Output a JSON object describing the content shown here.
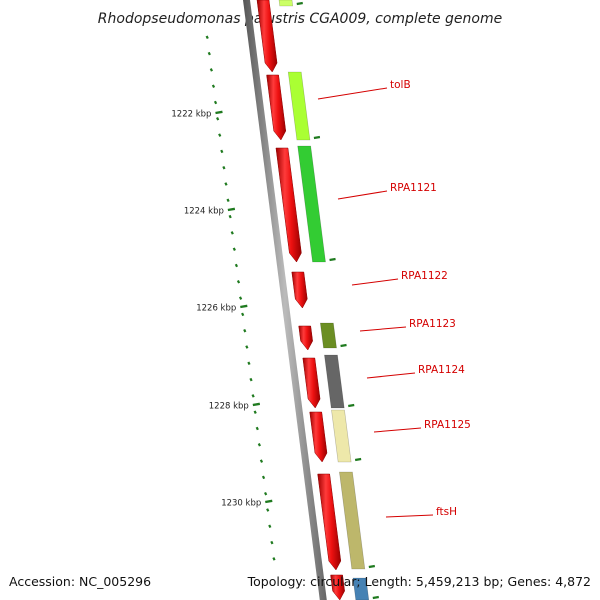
{
  "title": "Rhodopseudomonas palustris CGA009, complete genome",
  "footer": {
    "accession": "Accession: NC_005296",
    "summary": "Topology: circular; Length: 5,459,213 bp; Genes: 4,872"
  },
  "scale": {
    "tick_color": "#1f7a1f",
    "labels": [
      "1222 kbp",
      "1224 kbp",
      "1226 kbp",
      "1228 kbp",
      "1230 kbp"
    ]
  },
  "colors": {
    "cds_strand": "#ee1111",
    "backbone": "#888888",
    "label": "#d40000"
  },
  "genes": [
    {
      "name": "",
      "color": "#ccff66"
    },
    {
      "name": "tolB",
      "color": "#aaff33"
    },
    {
      "name": "RPA1121",
      "color": "#33cc33"
    },
    {
      "name": "RPA1122",
      "color": ""
    },
    {
      "name": "RPA1123",
      "color": "#6b8e23"
    },
    {
      "name": "RPA1124",
      "color": "#666666"
    },
    {
      "name": "RPA1125",
      "color": "#eee8aa"
    },
    {
      "name": "ftsH",
      "color": "#bdb76b"
    },
    {
      "name": "",
      "color": "#4682b4"
    }
  ]
}
